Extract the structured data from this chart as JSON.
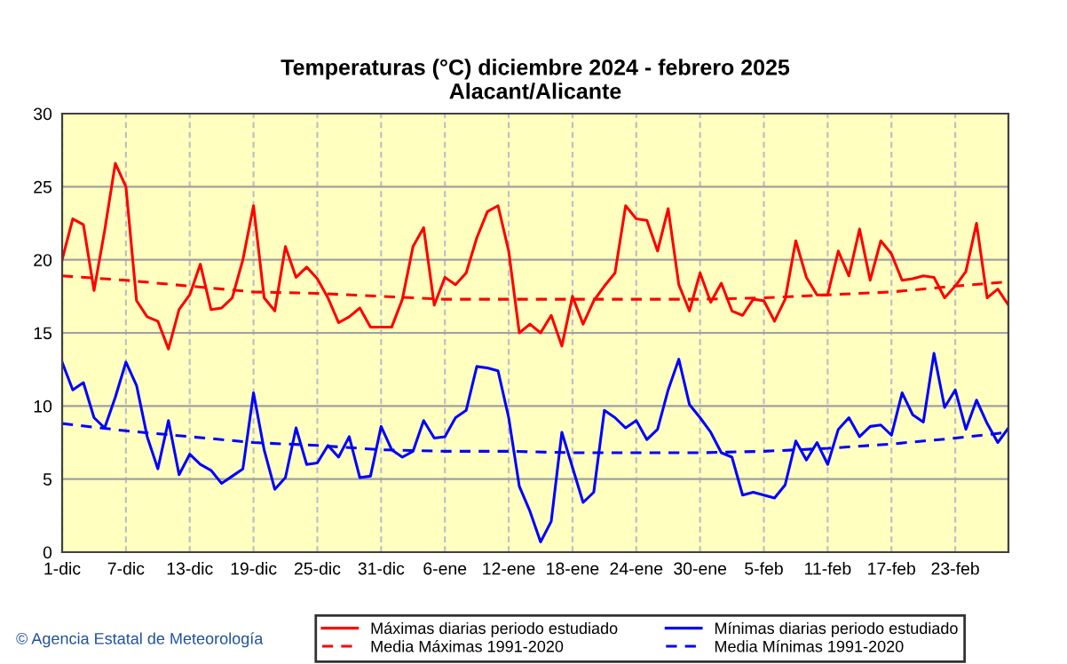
{
  "chart_data": {
    "type": "line",
    "title": "Temperaturas (°C) diciembre 2024 - febrero 2025\nAlacant/Alicante",
    "xlim": [
      "2024-12-01",
      "2025-02-28"
    ],
    "ylim": [
      0,
      30
    ],
    "yticks": [
      0,
      5,
      10,
      15,
      20,
      25,
      30
    ],
    "xticks": [
      {
        "value": "2024-12-01",
        "label": "1-dic"
      },
      {
        "value": "2024-12-07",
        "label": "7-dic"
      },
      {
        "value": "2024-12-13",
        "label": "13-dic"
      },
      {
        "value": "2024-12-19",
        "label": "19-dic"
      },
      {
        "value": "2024-12-25",
        "label": "25-dic"
      },
      {
        "value": "2024-12-31",
        "label": "31-dic"
      },
      {
        "value": "2025-01-06",
        "label": "6-ene"
      },
      {
        "value": "2025-01-12",
        "label": "12-ene"
      },
      {
        "value": "2025-01-18",
        "label": "18-ene"
      },
      {
        "value": "2025-01-24",
        "label": "24-ene"
      },
      {
        "value": "2025-01-30",
        "label": "30-ene"
      },
      {
        "value": "2025-02-05",
        "label": "5-feb"
      },
      {
        "value": "2025-02-11",
        "label": "11-feb"
      },
      {
        "value": "2025-02-17",
        "label": "17-feb"
      },
      {
        "value": "2025-02-23",
        "label": "23-feb"
      }
    ],
    "x": [
      "2024-12-01",
      "2024-12-02",
      "2024-12-03",
      "2024-12-04",
      "2024-12-05",
      "2024-12-06",
      "2024-12-07",
      "2024-12-08",
      "2024-12-09",
      "2024-12-10",
      "2024-12-11",
      "2024-12-12",
      "2024-12-13",
      "2024-12-14",
      "2024-12-15",
      "2024-12-16",
      "2024-12-17",
      "2024-12-18",
      "2024-12-19",
      "2024-12-20",
      "2024-12-21",
      "2024-12-22",
      "2024-12-23",
      "2024-12-24",
      "2024-12-25",
      "2024-12-26",
      "2024-12-27",
      "2024-12-28",
      "2024-12-29",
      "2024-12-30",
      "2024-12-31",
      "2025-01-01",
      "2025-01-02",
      "2025-01-03",
      "2025-01-04",
      "2025-01-05",
      "2025-01-06",
      "2025-01-07",
      "2025-01-08",
      "2025-01-09",
      "2025-01-10",
      "2025-01-11",
      "2025-01-12",
      "2025-01-13",
      "2025-01-14",
      "2025-01-15",
      "2025-01-16",
      "2025-01-17",
      "2025-01-18",
      "2025-01-19",
      "2025-01-20",
      "2025-01-21",
      "2025-01-22",
      "2025-01-23",
      "2025-01-24",
      "2025-01-25",
      "2025-01-26",
      "2025-01-27",
      "2025-01-28",
      "2025-01-29",
      "2025-01-30",
      "2025-01-31",
      "2025-02-01",
      "2025-02-02",
      "2025-02-03",
      "2025-02-04",
      "2025-02-05",
      "2025-02-06",
      "2025-02-07",
      "2025-02-08",
      "2025-02-09",
      "2025-02-10",
      "2025-02-11",
      "2025-02-12",
      "2025-02-13",
      "2025-02-14",
      "2025-02-15",
      "2025-02-16",
      "2025-02-17",
      "2025-02-18",
      "2025-02-19",
      "2025-02-20",
      "2025-02-21",
      "2025-02-22",
      "2025-02-23",
      "2025-02-24",
      "2025-02-25",
      "2025-02-26",
      "2025-02-27",
      "2025-02-28"
    ],
    "grid": true,
    "legend": "bottom",
    "marker": "none",
    "series": [
      {
        "name": "Máximas diarias periodo estudiado",
        "color": "#ff0000",
        "line_style": "solid",
        "values": [
          20.0,
          22.8,
          22.4,
          17.9,
          22.0,
          26.6,
          25.0,
          17.2,
          16.1,
          15.8,
          13.9,
          16.6,
          17.6,
          19.7,
          16.6,
          16.7,
          17.4,
          20.0,
          23.7,
          17.4,
          16.5,
          20.9,
          18.8,
          19.5,
          18.7,
          17.4,
          15.7,
          16.1,
          16.7,
          15.4,
          15.4,
          15.4,
          17.3,
          20.9,
          22.2,
          16.9,
          18.8,
          18.3,
          19.1,
          21.5,
          23.3,
          23.7,
          20.6,
          15.0,
          15.6,
          15.0,
          16.2,
          14.1,
          17.5,
          15.6,
          17.2,
          18.2,
          19.1,
          23.7,
          22.8,
          22.7,
          20.6,
          23.5,
          18.3,
          16.5,
          19.1,
          17.1,
          18.4,
          16.5,
          16.2,
          17.3,
          17.2,
          15.8,
          17.3,
          21.3,
          18.8,
          17.6,
          17.6,
          20.6,
          18.9,
          22.1,
          18.6,
          21.3,
          20.4,
          18.6,
          18.7,
          18.9,
          18.8,
          17.4,
          18.2,
          19.2,
          22.5,
          17.4,
          18.0,
          16.9
        ]
      },
      {
        "name": "Mínimas diarias periodo estudiado",
        "color": "#0000ff",
        "line_style": "solid",
        "values": [
          13.0,
          11.1,
          11.6,
          9.2,
          8.5,
          10.6,
          13.0,
          11.4,
          7.9,
          5.7,
          9.0,
          5.3,
          6.7,
          6.0,
          5.6,
          4.7,
          5.2,
          5.7,
          10.9,
          7.0,
          4.3,
          5.1,
          8.5,
          6.0,
          6.1,
          7.3,
          6.5,
          7.9,
          5.1,
          5.2,
          8.6,
          7.0,
          6.5,
          6.9,
          9.0,
          7.8,
          7.9,
          9.2,
          9.7,
          12.7,
          12.6,
          12.4,
          9.2,
          4.5,
          2.8,
          0.7,
          2.1,
          8.2,
          5.8,
          3.4,
          4.1,
          9.7,
          9.2,
          8.5,
          9.0,
          7.7,
          8.4,
          11.1,
          13.2,
          10.1,
          9.2,
          8.2,
          6.8,
          6.5,
          3.9,
          4.1,
          3.9,
          3.7,
          4.6,
          7.6,
          6.3,
          7.5,
          6.0,
          8.4,
          9.2,
          7.9,
          8.6,
          8.7,
          8.0,
          10.9,
          9.4,
          8.9,
          13.6,
          9.9,
          11.1,
          8.4,
          10.4,
          8.8,
          7.5,
          8.5
        ]
      },
      {
        "name": "Media Máximas 1991-2020",
        "color": "#ff0000",
        "line_style": "dashed",
        "x": [
          "2024-12-01",
          "2024-12-07",
          "2024-12-13",
          "2024-12-19",
          "2024-12-25",
          "2024-12-31",
          "2025-01-06",
          "2025-01-12",
          "2025-01-18",
          "2025-01-24",
          "2025-01-30",
          "2025-02-05",
          "2025-02-11",
          "2025-02-17",
          "2025-02-23",
          "2025-02-28"
        ],
        "values": [
          18.9,
          18.6,
          18.2,
          17.8,
          17.7,
          17.5,
          17.3,
          17.3,
          17.3,
          17.3,
          17.3,
          17.4,
          17.6,
          17.8,
          18.2,
          18.5
        ]
      },
      {
        "name": "Media Mínimas 1991-2020",
        "color": "#0000ff",
        "line_style": "dashed",
        "x": [
          "2024-12-01",
          "2024-12-07",
          "2024-12-13",
          "2024-12-19",
          "2024-12-25",
          "2024-12-31",
          "2025-01-06",
          "2025-01-12",
          "2025-01-18",
          "2025-01-24",
          "2025-01-30",
          "2025-02-05",
          "2025-02-11",
          "2025-02-17",
          "2025-02-23",
          "2025-02-28"
        ],
        "values": [
          8.8,
          8.3,
          7.9,
          7.5,
          7.3,
          7.0,
          6.9,
          6.9,
          6.8,
          6.8,
          6.8,
          6.9,
          7.1,
          7.4,
          7.8,
          8.2
        ]
      }
    ],
    "annotations": [
      "© Agencia Estatal de Meteorología"
    ]
  }
}
